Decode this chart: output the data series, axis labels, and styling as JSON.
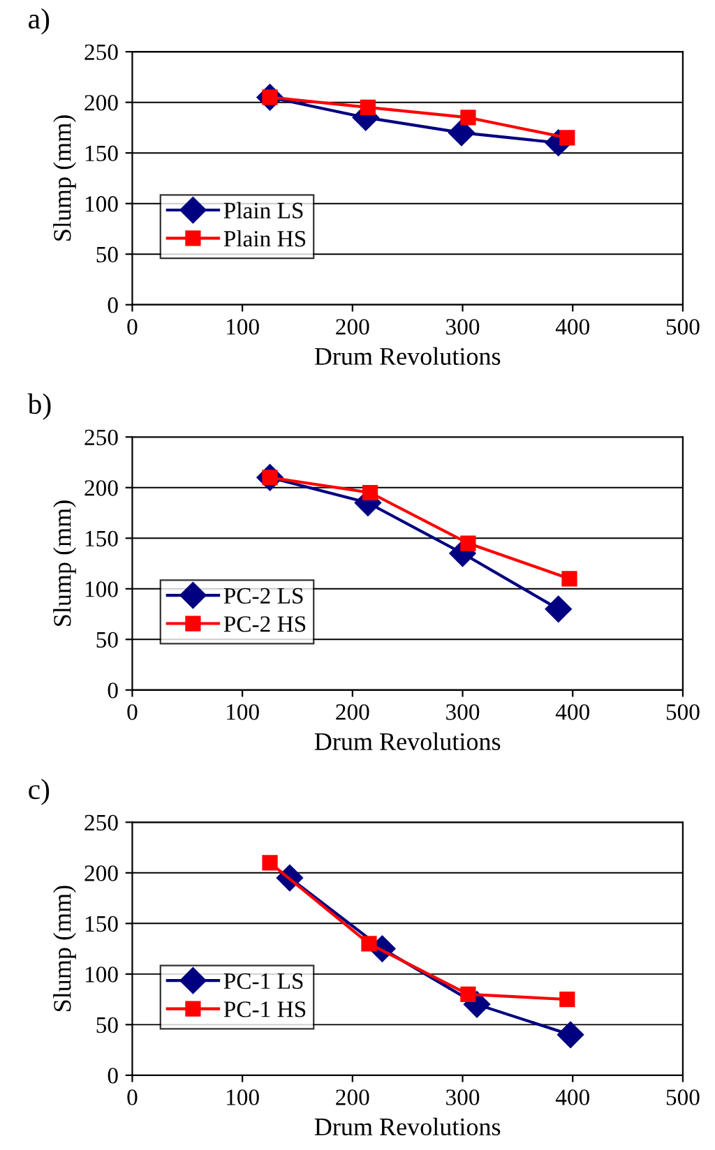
{
  "chart_data": [
    {
      "type": "line",
      "title": "a)",
      "xlabel": "Drum Revolutions",
      "ylabel": "Slump (mm)",
      "xlim": [
        0,
        500
      ],
      "xticks": [
        0,
        100,
        200,
        300,
        400,
        500
      ],
      "ylim": [
        0,
        250
      ],
      "yticks": [
        0,
        50,
        100,
        150,
        200,
        250
      ],
      "grid": "y",
      "legend": "left",
      "series": [
        {
          "name": "Plain LS",
          "color": "#000080",
          "marker": "diamond",
          "x": [
            125,
            212,
            299,
            387
          ],
          "values": [
            205,
            185,
            170,
            160
          ]
        },
        {
          "name": "Plain HS",
          "color": "#ff0000",
          "marker": "square",
          "x": [
            125,
            214,
            305,
            395
          ],
          "values": [
            205,
            195,
            185,
            165
          ]
        }
      ]
    },
    {
      "type": "line",
      "title": "b)",
      "xlabel": "Drum Revolutions",
      "ylabel": "Slump (mm)",
      "xlim": [
        0,
        500
      ],
      "xticks": [
        0,
        100,
        200,
        300,
        400,
        500
      ],
      "ylim": [
        0,
        250
      ],
      "yticks": [
        0,
        50,
        100,
        150,
        200,
        250
      ],
      "grid": "y",
      "legend": "left",
      "series": [
        {
          "name": "PC-2 LS",
          "color": "#000080",
          "marker": "diamond",
          "x": [
            125,
            214,
            300,
            387
          ],
          "values": [
            210,
            185,
            135,
            80
          ]
        },
        {
          "name": "PC-2 HS",
          "color": "#ff0000",
          "marker": "square",
          "x": [
            125,
            216,
            305,
            397
          ],
          "values": [
            210,
            195,
            145,
            110
          ]
        }
      ]
    },
    {
      "type": "line",
      "title": "c)",
      "xlabel": "Drum Revolutions",
      "ylabel": "Slump (mm)",
      "xlim": [
        0,
        500
      ],
      "xticks": [
        0,
        100,
        200,
        300,
        400,
        500
      ],
      "ylim": [
        0,
        250
      ],
      "yticks": [
        0,
        50,
        100,
        150,
        200,
        250
      ],
      "grid": "y",
      "legend": "left",
      "series": [
        {
          "name": "PC-1 LS",
          "color": "#000080",
          "marker": "diamond",
          "x": [
            143,
            227,
            313,
            398
          ],
          "values": [
            195,
            125,
            70,
            40
          ]
        },
        {
          "name": "PC-1 HS",
          "color": "#ff0000",
          "marker": "square",
          "x": [
            125,
            215,
            305,
            395
          ],
          "values": [
            210,
            130,
            80,
            75
          ]
        }
      ]
    }
  ]
}
